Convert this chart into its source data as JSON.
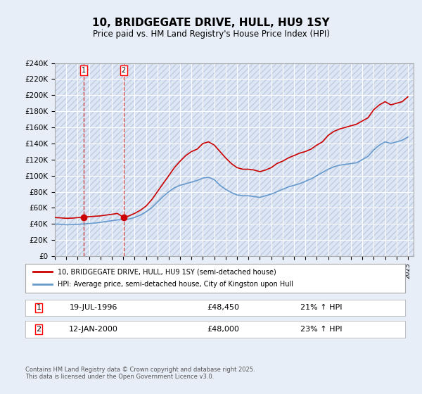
{
  "title": "10, BRIDGEGATE DRIVE, HULL, HU9 1SY",
  "subtitle": "Price paid vs. HM Land Registry's House Price Index (HPI)",
  "legend_line1": "10, BRIDGEGATE DRIVE, HULL, HU9 1SY (semi-detached house)",
  "legend_line2": "HPI: Average price, semi-detached house, City of Kingston upon Hull",
  "footer": "Contains HM Land Registry data © Crown copyright and database right 2025.\nThis data is licensed under the Open Government Licence v3.0.",
  "sale1_label": "1",
  "sale1_date": "19-JUL-1996",
  "sale1_price": "£48,450",
  "sale1_hpi": "21% ↑ HPI",
  "sale1_x": 1996.54,
  "sale1_y": 48450,
  "sale2_label": "2",
  "sale2_date": "12-JAN-2000",
  "sale2_price": "£48,000",
  "sale2_hpi": "23% ↑ HPI",
  "sale2_x": 2000.04,
  "sale2_y": 48000,
  "red_color": "#cc0000",
  "blue_color": "#6699cc",
  "background_color": "#e8eef8",
  "plot_bg_color": "#dce6f5",
  "grid_color": "#ffffff",
  "hatch_color": "#c0cce0",
  "ylim": [
    0,
    240000
  ],
  "xlim_start": 1994.0,
  "xlim_end": 2025.5,
  "yticks": [
    0,
    20000,
    40000,
    60000,
    80000,
    100000,
    120000,
    140000,
    160000,
    180000,
    200000,
    220000,
    240000
  ],
  "xticks": [
    1994,
    1995,
    1996,
    1997,
    1998,
    1999,
    2000,
    2001,
    2002,
    2003,
    2004,
    2005,
    2006,
    2007,
    2008,
    2009,
    2010,
    2011,
    2012,
    2013,
    2014,
    2015,
    2016,
    2017,
    2018,
    2019,
    2020,
    2021,
    2022,
    2023,
    2024,
    2025
  ],
  "red_x": [
    1994.0,
    1994.5,
    1995.0,
    1995.5,
    1996.0,
    1996.54,
    1997.0,
    1997.5,
    1998.0,
    1998.5,
    1999.0,
    1999.5,
    2000.04,
    2000.5,
    2001.0,
    2001.5,
    2002.0,
    2002.5,
    2003.0,
    2003.5,
    2004.0,
    2004.5,
    2005.0,
    2005.5,
    2006.0,
    2006.5,
    2007.0,
    2007.5,
    2008.0,
    2008.5,
    2009.0,
    2009.5,
    2010.0,
    2010.5,
    2011.0,
    2011.5,
    2012.0,
    2012.5,
    2013.0,
    2013.5,
    2014.0,
    2014.5,
    2015.0,
    2015.5,
    2016.0,
    2016.5,
    2017.0,
    2017.5,
    2018.0,
    2018.5,
    2019.0,
    2019.5,
    2020.0,
    2020.5,
    2021.0,
    2021.5,
    2022.0,
    2022.5,
    2023.0,
    2023.5,
    2024.0,
    2024.5,
    2025.0
  ],
  "red_y": [
    48000,
    47500,
    47000,
    47200,
    47800,
    48450,
    49000,
    49500,
    50000,
    51000,
    52000,
    53000,
    48000,
    50000,
    53000,
    57000,
    62000,
    70000,
    80000,
    90000,
    100000,
    110000,
    118000,
    125000,
    130000,
    133000,
    140000,
    142000,
    138000,
    130000,
    122000,
    115000,
    110000,
    108000,
    108000,
    107000,
    105000,
    107000,
    110000,
    115000,
    118000,
    122000,
    125000,
    128000,
    130000,
    133000,
    138000,
    142000,
    150000,
    155000,
    158000,
    160000,
    162000,
    164000,
    168000,
    172000,
    182000,
    188000,
    192000,
    188000,
    190000,
    192000,
    198000
  ],
  "blue_x": [
    1994.0,
    1994.5,
    1995.0,
    1995.5,
    1996.0,
    1996.5,
    1997.0,
    1997.5,
    1998.0,
    1998.5,
    1999.0,
    1999.5,
    2000.0,
    2000.5,
    2001.0,
    2001.5,
    2002.0,
    2002.5,
    2003.0,
    2003.5,
    2004.0,
    2004.5,
    2005.0,
    2005.5,
    2006.0,
    2006.5,
    2007.0,
    2007.5,
    2008.0,
    2008.5,
    2009.0,
    2009.5,
    2010.0,
    2010.5,
    2011.0,
    2011.5,
    2012.0,
    2012.5,
    2013.0,
    2013.5,
    2014.0,
    2014.5,
    2015.0,
    2015.5,
    2016.0,
    2016.5,
    2017.0,
    2017.5,
    2018.0,
    2018.5,
    2019.0,
    2019.5,
    2020.0,
    2020.5,
    2021.0,
    2021.5,
    2022.0,
    2022.5,
    2023.0,
    2023.5,
    2024.0,
    2024.5,
    2025.0
  ],
  "blue_y": [
    40000,
    39500,
    39000,
    39200,
    39500,
    40000,
    40500,
    41000,
    42000,
    43000,
    44000,
    45000,
    45500,
    46000,
    48000,
    51000,
    55000,
    60000,
    67000,
    74000,
    80000,
    85000,
    88000,
    90000,
    92000,
    94000,
    97000,
    98000,
    95000,
    88000,
    83000,
    79000,
    76000,
    75000,
    75000,
    74000,
    73000,
    75000,
    77000,
    80000,
    83000,
    86000,
    88000,
    90000,
    93000,
    96000,
    100000,
    104000,
    108000,
    111000,
    113000,
    114000,
    115000,
    116000,
    120000,
    124000,
    132000,
    138000,
    142000,
    140000,
    142000,
    144000,
    148000
  ]
}
